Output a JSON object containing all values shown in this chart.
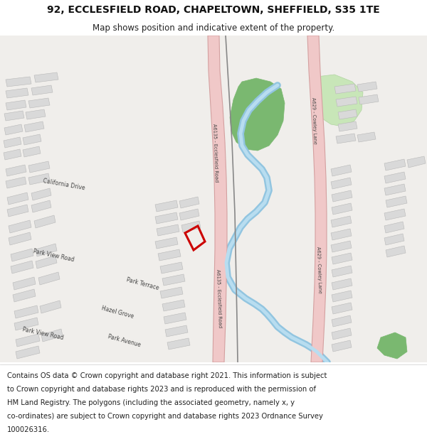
{
  "title": "92, ECCLESFIELD ROAD, CHAPELTOWN, SHEFFIELD, S35 1TE",
  "subtitle": "Map shows position and indicative extent of the property.",
  "footer_lines": [
    "Contains OS data © Crown copyright and database right 2021. This information is subject",
    "to Crown copyright and database rights 2023 and is reproduced with the permission of",
    "HM Land Registry. The polygons (including the associated geometry, namely x, y",
    "co-ordinates) are subject to Crown copyright and database rights 2023 Ordnance Survey",
    "100026316."
  ],
  "map_bg": "#f0eeeb",
  "road_pink": "#f0c8c8",
  "road_pink_border": "#d4a0a0",
  "building_color": "#d9d9d9",
  "building_edge": "#b8b8b8",
  "green_dark": "#7ab870",
  "green_light": "#c8e6b8",
  "water_blue": "#92c5e0",
  "red_outline": "#cc0000",
  "railway_color": "#888888",
  "title_fontsize": 10,
  "subtitle_fontsize": 8.5,
  "footer_fontsize": 7.2,
  "road_label_color": "#444444",
  "road_label_size": 5.5
}
